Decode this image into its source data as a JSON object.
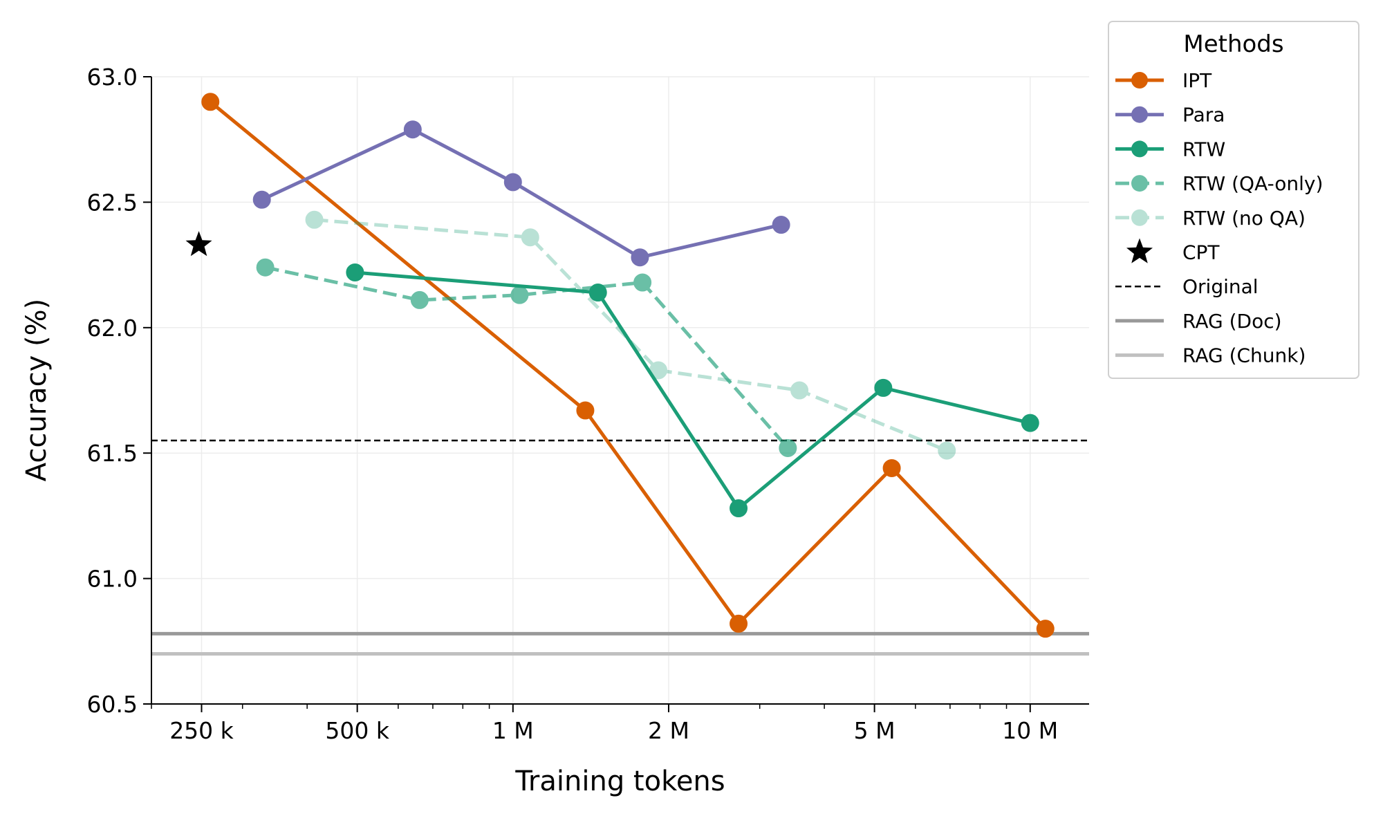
{
  "chart_data": {
    "type": "line",
    "xlabel": "Training tokens",
    "ylabel": "Accuracy (%)",
    "x_scale": "log",
    "xlim": [
      200000,
      13000000
    ],
    "ylim": [
      60.5,
      63.0
    ],
    "x_ticks": [
      {
        "value": 250000,
        "label": "250 k"
      },
      {
        "value": 500000,
        "label": "500 k"
      },
      {
        "value": 1000000,
        "label": "1 M"
      },
      {
        "value": 2000000,
        "label": "2 M"
      },
      {
        "value": 5000000,
        "label": "5 M"
      },
      {
        "value": 10000000,
        "label": "10 M"
      }
    ],
    "y_ticks": [
      {
        "value": 60.5,
        "label": "60.5"
      },
      {
        "value": 61.0,
        "label": "61.0"
      },
      {
        "value": 61.5,
        "label": "61.5"
      },
      {
        "value": 62.0,
        "label": "62.0"
      },
      {
        "value": 62.5,
        "label": "62.5"
      },
      {
        "value": 63.0,
        "label": "63.0"
      }
    ],
    "grid": true,
    "legend": {
      "title": "Methods",
      "placement": "outside-top-right"
    },
    "series": [
      {
        "name": "IPT",
        "color": "#d95f02",
        "style": "solid",
        "marker": "circle",
        "opacity": 1.0,
        "points": [
          [
            260000,
            62.9
          ],
          [
            1380000,
            61.67
          ],
          [
            2730000,
            60.82
          ],
          [
            5400000,
            61.44
          ],
          [
            10700000,
            60.8
          ]
        ]
      },
      {
        "name": "Para",
        "color": "#7570b3",
        "style": "solid",
        "marker": "circle",
        "opacity": 1.0,
        "points": [
          [
            327000,
            62.51
          ],
          [
            640000,
            62.79
          ],
          [
            1000000,
            62.58
          ],
          [
            1760000,
            62.28
          ],
          [
            3300000,
            62.41
          ]
        ]
      },
      {
        "name": "RTW",
        "color": "#1b9e77",
        "style": "solid",
        "marker": "circle",
        "opacity": 1.0,
        "points": [
          [
            495000,
            62.22
          ],
          [
            1460000,
            62.14
          ],
          [
            2730000,
            61.28
          ],
          [
            5200000,
            61.76
          ],
          [
            10000000,
            61.62
          ]
        ]
      },
      {
        "name": "RTW (QA-only)",
        "color": "#1b9e77",
        "style": "dashed",
        "marker": "circle",
        "opacity": 0.65,
        "points": [
          [
            332000,
            62.24
          ],
          [
            660000,
            62.11
          ],
          [
            1030000,
            62.13
          ],
          [
            1780000,
            62.18
          ],
          [
            3400000,
            61.52
          ]
        ]
      },
      {
        "name": "RTW (no QA)",
        "color": "#1b9e77",
        "style": "dashed",
        "marker": "circle",
        "opacity": 0.3,
        "points": [
          [
            413000,
            62.43
          ],
          [
            1080000,
            62.36
          ],
          [
            1910000,
            61.83
          ],
          [
            3580000,
            61.75
          ],
          [
            6900000,
            61.51
          ]
        ]
      }
    ],
    "points": [
      {
        "name": "CPT",
        "marker": "star",
        "color": "#000000",
        "x": 247000,
        "y": 62.33
      }
    ],
    "reference_lines": [
      {
        "name": "Original",
        "y": 61.55,
        "color": "#000000",
        "style": "dashed"
      },
      {
        "name": "RAG (Doc)",
        "y": 60.78,
        "color": "#999999",
        "style": "solid"
      },
      {
        "name": "RAG (Chunk)",
        "y": 60.7,
        "color": "#c0c0c0",
        "style": "solid"
      }
    ]
  }
}
